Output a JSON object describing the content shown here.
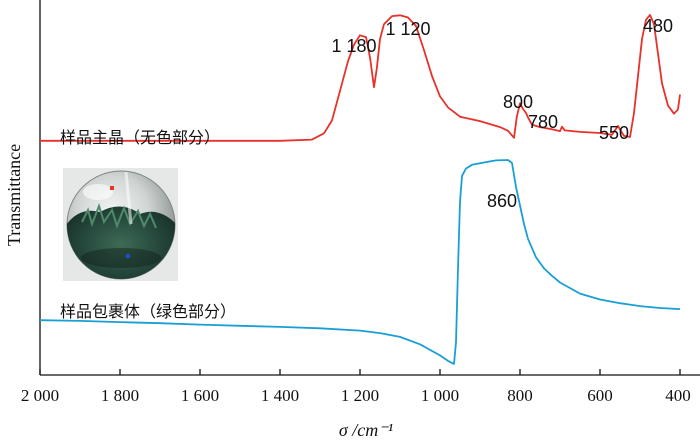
{
  "chart_data": {
    "type": "line",
    "xlabel": "σ /cm⁻¹",
    "ylabel": "Transmittance",
    "xlim": [
      2000,
      400
    ],
    "x_ticks": [
      {
        "value": 2000,
        "label": "2 000"
      },
      {
        "value": 1800,
        "label": "1 800"
      },
      {
        "value": 1600,
        "label": "1 600"
      },
      {
        "value": 1400,
        "label": "1 400"
      },
      {
        "value": 1200,
        "label": "1 200"
      },
      {
        "value": 1000,
        "label": "1 000"
      },
      {
        "value": 800,
        "label": "800"
      },
      {
        "value": 600,
        "label": "600"
      },
      {
        "value": 400,
        "label": "400"
      }
    ],
    "ylim": [
      0,
      100
    ],
    "series": [
      {
        "name": "样品主晶（无色部分）",
        "color": "#e8312a",
        "points": [
          [
            2000,
            62.5
          ],
          [
            1800,
            62.5
          ],
          [
            1600,
            62.5
          ],
          [
            1400,
            62.5
          ],
          [
            1320,
            62.8
          ],
          [
            1290,
            64.5
          ],
          [
            1270,
            68
          ],
          [
            1250,
            76
          ],
          [
            1230,
            84
          ],
          [
            1215,
            88.5
          ],
          [
            1200,
            91
          ],
          [
            1185,
            90.5
          ],
          [
            1175,
            85
          ],
          [
            1165,
            77
          ],
          [
            1158,
            82
          ],
          [
            1150,
            90
          ],
          [
            1140,
            94
          ],
          [
            1120,
            96.2
          ],
          [
            1100,
            96.4
          ],
          [
            1080,
            95.8
          ],
          [
            1060,
            93.5
          ],
          [
            1040,
            87
          ],
          [
            1020,
            80
          ],
          [
            1000,
            74.5
          ],
          [
            980,
            71.5
          ],
          [
            950,
            69
          ],
          [
            900,
            67.8
          ],
          [
            850,
            66.2
          ],
          [
            830,
            65.2
          ],
          [
            815,
            63.3
          ],
          [
            808,
            69
          ],
          [
            800,
            72.6
          ],
          [
            793,
            71.2
          ],
          [
            785,
            70
          ],
          [
            780,
            68.8
          ],
          [
            770,
            66.8
          ],
          [
            750,
            66.2
          ],
          [
            720,
            65.6
          ],
          [
            700,
            65.1
          ],
          [
            695,
            66.3
          ],
          [
            688,
            65.3
          ],
          [
            650,
            64.9
          ],
          [
            600,
            64.6
          ],
          [
            570,
            64.1
          ],
          [
            555,
            66.5
          ],
          [
            548,
            65.2
          ],
          [
            540,
            63.8
          ],
          [
            525,
            63.5
          ],
          [
            515,
            70
          ],
          [
            505,
            80
          ],
          [
            495,
            90
          ],
          [
            485,
            95.2
          ],
          [
            475,
            96.5
          ],
          [
            465,
            94
          ],
          [
            455,
            86
          ],
          [
            445,
            78
          ],
          [
            430,
            72
          ],
          [
            415,
            69.8
          ],
          [
            405,
            71
          ],
          [
            400,
            75
          ]
        ]
      },
      {
        "name": "样品包裹体（绿色部分）",
        "color": "#199fd6",
        "points": [
          [
            2000,
            14
          ],
          [
            1900,
            13.8
          ],
          [
            1800,
            13.5
          ],
          [
            1700,
            13.2
          ],
          [
            1600,
            12.8
          ],
          [
            1500,
            12.5
          ],
          [
            1400,
            12.2
          ],
          [
            1300,
            11.8
          ],
          [
            1200,
            11.2
          ],
          [
            1150,
            10.5
          ],
          [
            1100,
            9.5
          ],
          [
            1050,
            7.5
          ],
          [
            1000,
            4.5
          ],
          [
            980,
            3
          ],
          [
            965,
            2.2
          ],
          [
            960,
            8
          ],
          [
            955,
            28
          ],
          [
            950,
            46
          ],
          [
            945,
            53
          ],
          [
            935,
            55
          ],
          [
            920,
            56
          ],
          [
            880,
            56.8
          ],
          [
            860,
            57.2
          ],
          [
            830,
            57.3
          ],
          [
            820,
            56.5
          ],
          [
            810,
            50
          ],
          [
            800,
            45
          ],
          [
            790,
            40
          ],
          [
            780,
            36
          ],
          [
            760,
            31
          ],
          [
            740,
            28
          ],
          [
            720,
            26
          ],
          [
            700,
            24.2
          ],
          [
            650,
            21.2
          ],
          [
            600,
            19.6
          ],
          [
            550,
            18.6
          ],
          [
            500,
            17.8
          ],
          [
            450,
            17.3
          ],
          [
            400,
            17
          ]
        ]
      }
    ],
    "annotations": [
      {
        "text": "1 180",
        "series": 0
      },
      {
        "text": "1 120",
        "series": 0
      },
      {
        "text": "800",
        "series": 0
      },
      {
        "text": "780",
        "series": 0
      },
      {
        "text": "550",
        "series": 0
      },
      {
        "text": "480",
        "series": 0
      },
      {
        "text": "860",
        "series": 1
      }
    ],
    "inset": {
      "description_icon": "gemstone-sphere-photo"
    }
  }
}
